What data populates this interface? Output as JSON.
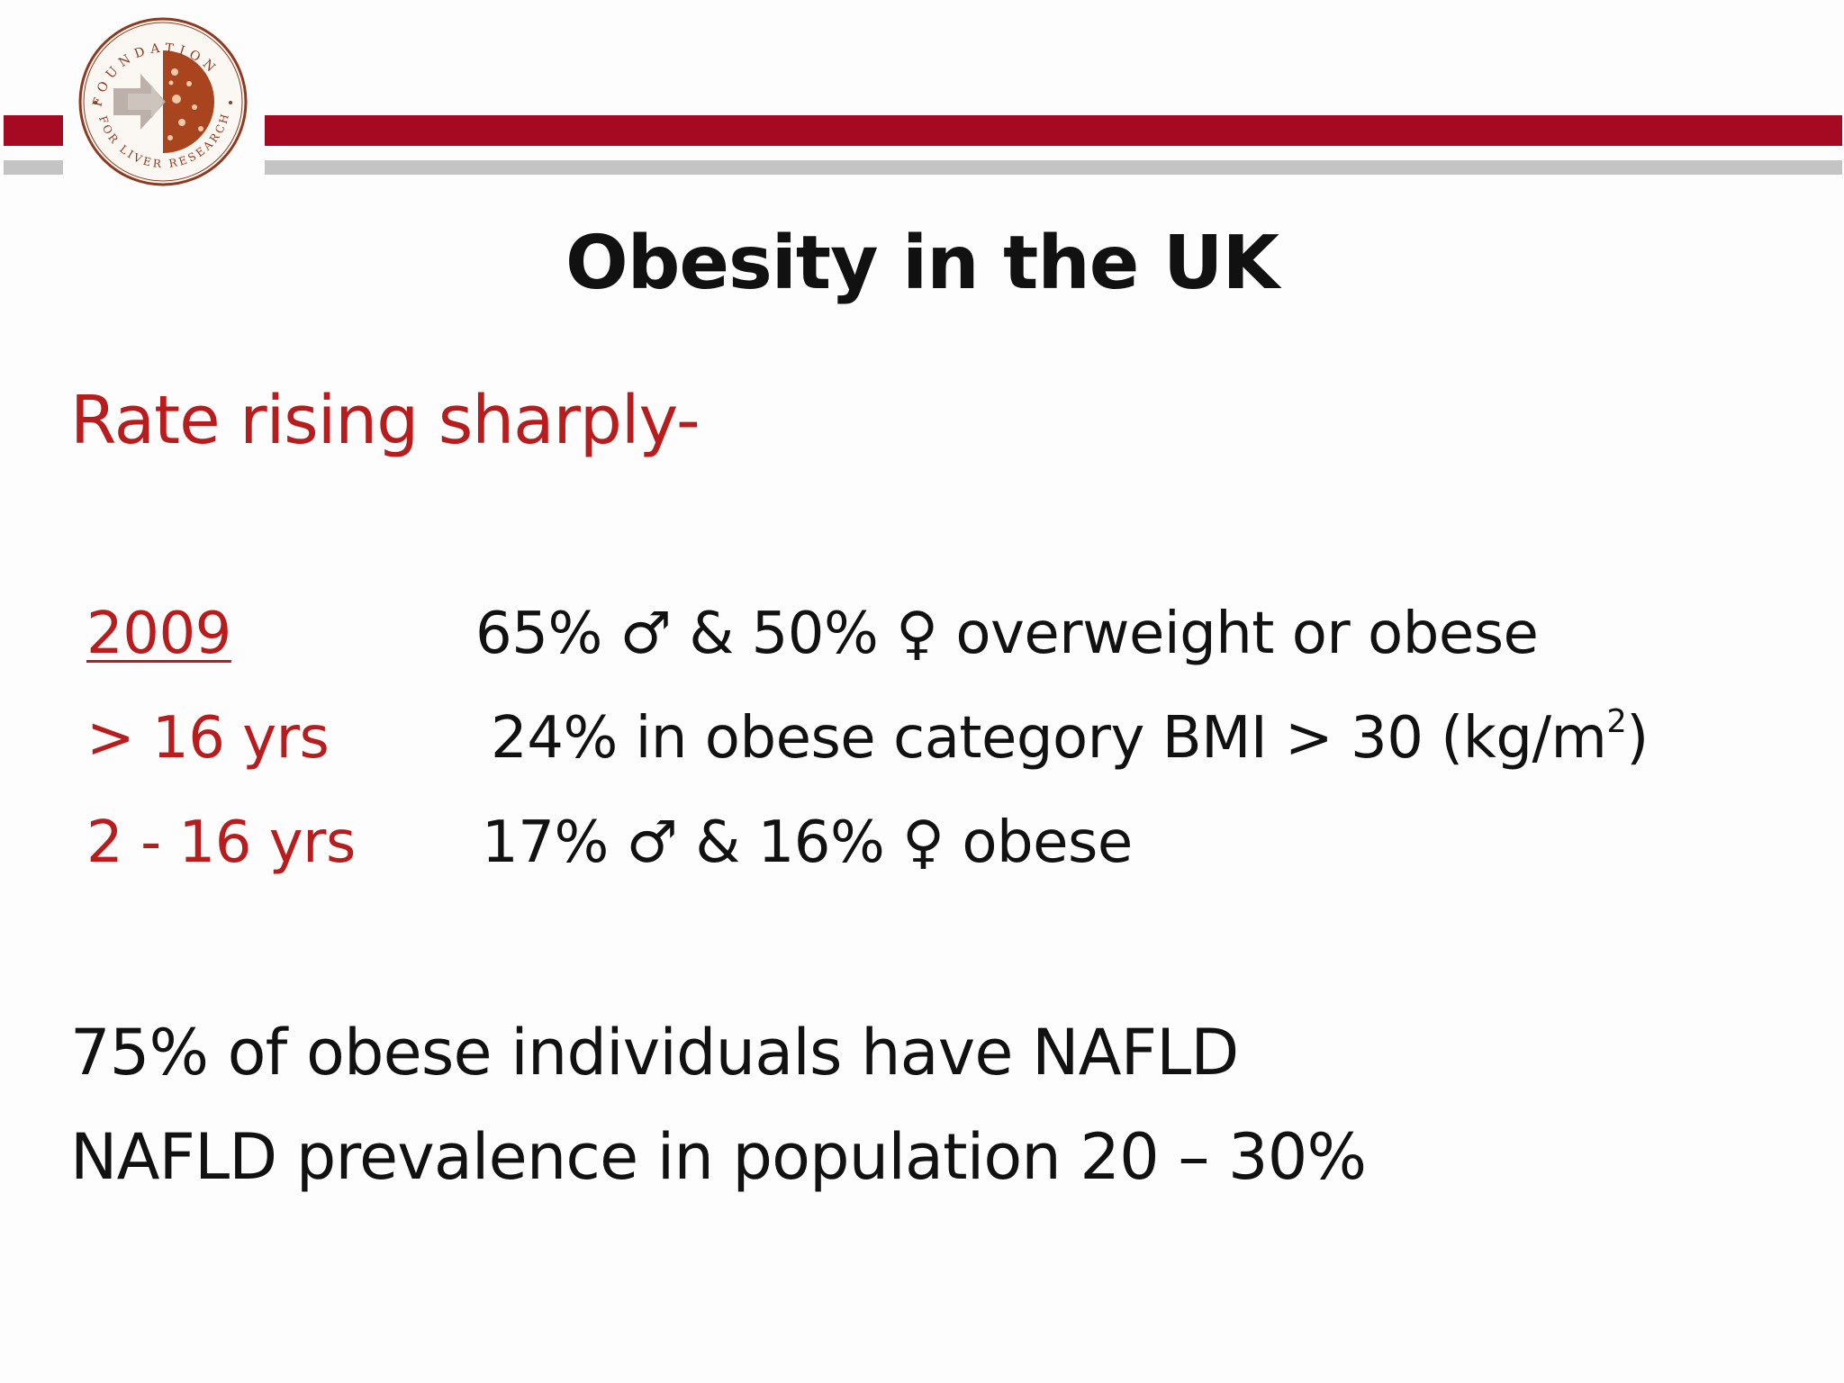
{
  "slide": {
    "title": "Obesity in the UK",
    "subtitle": "Rate rising sharply-",
    "rows": [
      {
        "label": "2009",
        "value_pre": "65% ",
        "male": "♂",
        "value_mid": " & 50% ",
        "female": "♀",
        "value_post": " overweight or obese"
      },
      {
        "label": "> 16 yrs",
        "value_pre": "24% in obese category BMI > 30 (kg/m",
        "sup": "2",
        "value_post": ")"
      },
      {
        "label": "2 - 16 yrs",
        "value_pre": "17% ",
        "male": "♂",
        "value_mid": " & 16% ",
        "female": "♀",
        "value_post": " obese"
      }
    ],
    "notes": [
      "75% of obese individuals have NAFLD",
      "NAFLD prevalence in population 20 – 30%"
    ]
  },
  "logo": {
    "text_top": "FOUNDATION",
    "text_bottom": "FOR LIVER RESEARCH"
  },
  "colors": {
    "accent_red": "#a60a23",
    "label_red": "#b81c1c",
    "bar_grey": "#c4c4c4",
    "text": "#111111",
    "logo_brown": "#8f3a1e",
    "logo_orange": "#b8532c"
  }
}
